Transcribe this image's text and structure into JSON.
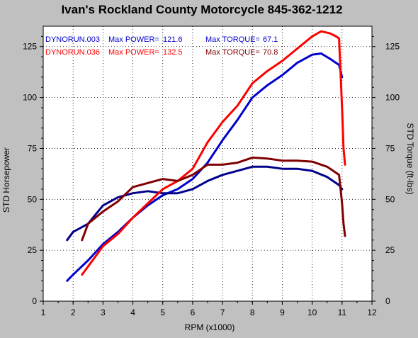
{
  "chart_data": {
    "type": "line",
    "title": "Ivan's Rockland County Motorcycle  845-362-1212",
    "xlabel": "RPM (x1000)",
    "ylabel_left": "STD Horsepower",
    "ylabel_right": "STD Torque (ft-lbs)",
    "xlim": [
      1,
      12
    ],
    "ylim": [
      0,
      135
    ],
    "x_ticks": [
      "1",
      "2",
      "3",
      "4",
      "5",
      "6",
      "7",
      "8",
      "9",
      "10",
      "11",
      "12"
    ],
    "y_ticks": [
      "0",
      "25",
      "50",
      "75",
      "100",
      "125"
    ],
    "grid": true,
    "colors": {
      "plot_bg": "#ffffff",
      "frame_bg": "#c0c0c0",
      "grid": "#000000",
      "run1_power": "#0000cc",
      "run1_torque": "#00008b",
      "run2_power": "#ff0000",
      "run2_torque": "#800000"
    },
    "legend": {
      "placement": "top-left",
      "rows": [
        {
          "run": "DYNORUN.003",
          "power_label": "Max POWER=",
          "power_value": "121.6",
          "torque_label": "Max TORQUE=",
          "torque_value": "67.1",
          "color": "#0000cc",
          "torque_color": "#00008b"
        },
        {
          "run": "DYNORUN.036",
          "power_label": "Max POWER=",
          "power_value": "132.5",
          "torque_label": "Max TORQUE=",
          "torque_value": "70.8",
          "color": "#ff0000",
          "torque_color": "#800000"
        }
      ]
    },
    "series": [
      {
        "name": "DYNORUN.003",
        "measure": "power",
        "color": "#0000cc",
        "x": [
          1.8,
          2.0,
          2.5,
          3.0,
          3.5,
          4.0,
          4.5,
          5.0,
          5.5,
          6.0,
          6.5,
          7.0,
          7.5,
          8.0,
          8.5,
          9.0,
          9.5,
          10.0,
          10.3,
          10.6,
          10.9,
          11.0
        ],
        "y": [
          10,
          13,
          20,
          28,
          34,
          41,
          47,
          52,
          55,
          60,
          68,
          79,
          89,
          100,
          106,
          111,
          117,
          121,
          121.6,
          119,
          116,
          110
        ]
      },
      {
        "name": "DYNORUN.003",
        "measure": "torque",
        "color": "#00008b",
        "x": [
          1.8,
          2.0,
          2.5,
          3.0,
          3.5,
          4.0,
          4.5,
          5.0,
          5.5,
          6.0,
          6.5,
          7.0,
          7.5,
          8.0,
          8.5,
          9.0,
          9.5,
          10.0,
          10.5,
          10.9,
          11.0
        ],
        "y": [
          30,
          34,
          38,
          47,
          51,
          53,
          54,
          53,
          53,
          55,
          59,
          62,
          64,
          66,
          66,
          65,
          65,
          64,
          61,
          57,
          55
        ]
      },
      {
        "name": "DYNORUN.036",
        "measure": "power",
        "color": "#ff0000",
        "x": [
          2.3,
          2.5,
          3.0,
          3.5,
          4.0,
          4.5,
          5.0,
          5.5,
          6.0,
          6.5,
          7.0,
          7.5,
          8.0,
          8.5,
          9.0,
          9.5,
          10.0,
          10.3,
          10.6,
          10.8,
          10.9,
          11.0,
          11.05,
          11.1
        ],
        "y": [
          13,
          17,
          27,
          33,
          41,
          48,
          55,
          59,
          65,
          78,
          88,
          96,
          107,
          113,
          118,
          124,
          130,
          132.5,
          131.5,
          130,
          129,
          95,
          75,
          67
        ]
      },
      {
        "name": "DYNORUN.036",
        "measure": "torque",
        "color": "#800000",
        "x": [
          2.3,
          2.5,
          3.0,
          3.5,
          4.0,
          4.5,
          5.0,
          5.5,
          6.0,
          6.5,
          7.0,
          7.5,
          8.0,
          8.5,
          9.0,
          9.5,
          10.0,
          10.5,
          10.9,
          11.0,
          11.05,
          11.1
        ],
        "y": [
          30,
          38,
          44,
          49,
          56,
          58,
          60,
          59,
          62,
          67,
          67,
          68,
          70.5,
          70,
          69,
          69,
          68.5,
          66,
          62,
          48,
          38,
          32
        ]
      }
    ]
  }
}
